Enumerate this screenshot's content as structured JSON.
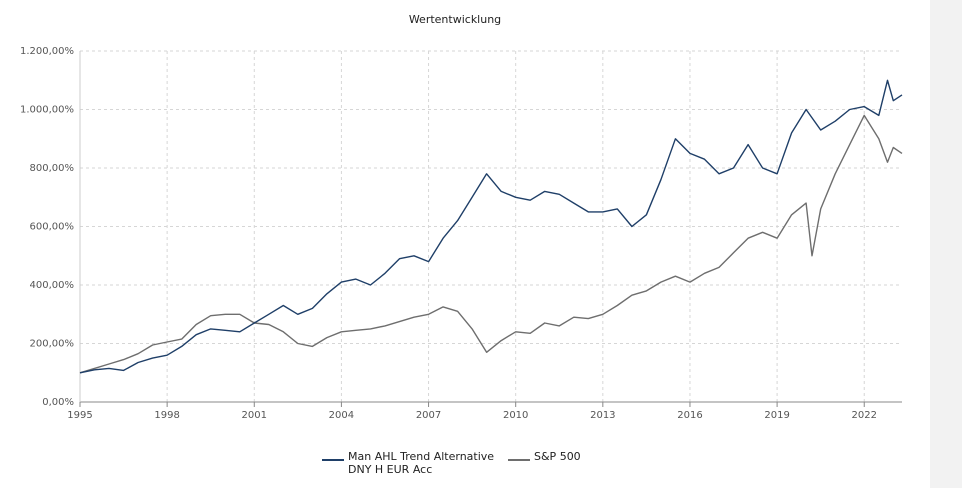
{
  "chart_data": {
    "type": "line",
    "title": "Wertentwicklung",
    "xlabel": "",
    "ylabel": "",
    "xlim": [
      1995.0,
      2023.3
    ],
    "ylim": [
      0,
      1200
    ],
    "grid": true,
    "legend_position": "bottom",
    "x_ticks": [
      "1995",
      "1998",
      "2001",
      "2004",
      "2007",
      "2010",
      "2013",
      "2016",
      "2019",
      "2022"
    ],
    "y_ticks": [
      "0,00%",
      "200,00%",
      "400,00%",
      "600,00%",
      "800,00%",
      "1.000,00%",
      "1.200,00%"
    ],
    "series": [
      {
        "name": "Man AHL Trend Alternative DNY H EUR Acc",
        "color": "#1f3f68",
        "x": [
          1995.0,
          1995.5,
          1996.0,
          1996.5,
          1997.0,
          1997.5,
          1998.0,
          1998.5,
          1999.0,
          1999.5,
          2000.0,
          2000.5,
          2001.0,
          2001.5,
          2002.0,
          2002.5,
          2003.0,
          2003.5,
          2004.0,
          2004.5,
          2005.0,
          2005.5,
          2006.0,
          2006.5,
          2007.0,
          2007.5,
          2008.0,
          2008.5,
          2009.0,
          2009.5,
          2010.0,
          2010.5,
          2011.0,
          2011.5,
          2012.0,
          2012.5,
          2013.0,
          2013.5,
          2014.0,
          2014.5,
          2015.0,
          2015.5,
          2016.0,
          2016.5,
          2017.0,
          2017.5,
          2018.0,
          2018.5,
          2019.0,
          2019.5,
          2020.0,
          2020.5,
          2021.0,
          2021.5,
          2022.0,
          2022.5,
          2022.8,
          2023.0,
          2023.3
        ],
        "values": [
          100,
          110,
          115,
          108,
          135,
          150,
          160,
          190,
          230,
          250,
          245,
          240,
          270,
          300,
          330,
          300,
          320,
          370,
          410,
          420,
          400,
          440,
          490,
          500,
          480,
          560,
          620,
          700,
          780,
          720,
          700,
          690,
          720,
          710,
          680,
          650,
          650,
          660,
          600,
          640,
          760,
          900,
          850,
          830,
          780,
          800,
          880,
          800,
          780,
          920,
          1000,
          930,
          960,
          1000,
          1010,
          980,
          1100,
          1030,
          1050
        ]
      },
      {
        "name": "S&P 500",
        "color": "#6e6e6e",
        "x": [
          1995.0,
          1995.5,
          1996.0,
          1996.5,
          1997.0,
          1997.5,
          1998.0,
          1998.5,
          1999.0,
          1999.5,
          2000.0,
          2000.5,
          2001.0,
          2001.5,
          2002.0,
          2002.5,
          2003.0,
          2003.5,
          2004.0,
          2004.5,
          2005.0,
          2005.5,
          2006.0,
          2006.5,
          2007.0,
          2007.5,
          2008.0,
          2008.5,
          2009.0,
          2009.5,
          2010.0,
          2010.5,
          2011.0,
          2011.5,
          2012.0,
          2012.5,
          2013.0,
          2013.5,
          2014.0,
          2014.5,
          2015.0,
          2015.5,
          2016.0,
          2016.5,
          2017.0,
          2017.5,
          2018.0,
          2018.5,
          2019.0,
          2019.5,
          2020.0,
          2020.2,
          2020.5,
          2021.0,
          2021.5,
          2022.0,
          2022.5,
          2022.8,
          2023.0,
          2023.3
        ],
        "values": [
          100,
          115,
          130,
          145,
          165,
          195,
          205,
          215,
          265,
          295,
          300,
          300,
          270,
          265,
          240,
          200,
          190,
          220,
          240,
          245,
          250,
          260,
          275,
          290,
          300,
          325,
          310,
          250,
          170,
          210,
          240,
          235,
          270,
          260,
          290,
          285,
          300,
          330,
          365,
          380,
          410,
          430,
          410,
          440,
          460,
          510,
          560,
          580,
          560,
          640,
          680,
          500,
          660,
          780,
          880,
          980,
          900,
          820,
          870,
          850
        ]
      }
    ]
  }
}
